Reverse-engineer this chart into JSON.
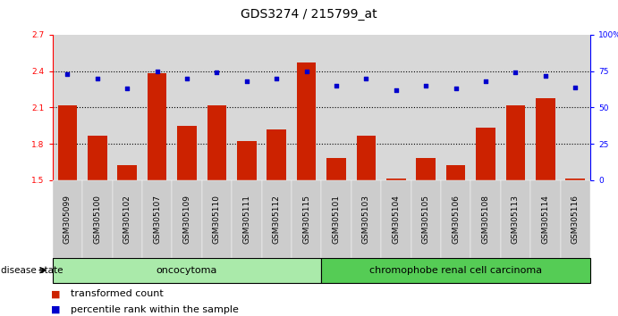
{
  "title": "GDS3274 / 215799_at",
  "samples": [
    "GSM305099",
    "GSM305100",
    "GSM305102",
    "GSM305107",
    "GSM305109",
    "GSM305110",
    "GSM305111",
    "GSM305112",
    "GSM305115",
    "GSM305101",
    "GSM305103",
    "GSM305104",
    "GSM305105",
    "GSM305106",
    "GSM305108",
    "GSM305113",
    "GSM305114",
    "GSM305116"
  ],
  "bar_values": [
    2.12,
    1.87,
    1.62,
    2.38,
    1.95,
    2.12,
    1.82,
    1.92,
    2.47,
    1.68,
    1.87,
    1.51,
    1.68,
    1.62,
    1.93,
    2.12,
    2.18,
    1.51
  ],
  "dot_values": [
    73,
    70,
    63,
    75,
    70,
    74,
    68,
    70,
    75,
    65,
    70,
    62,
    65,
    63,
    68,
    74,
    72,
    64
  ],
  "ylim_left": [
    1.5,
    2.7
  ],
  "ylim_right": [
    0,
    100
  ],
  "yticks_left": [
    1.5,
    1.8,
    2.1,
    2.4,
    2.7
  ],
  "yticks_right": [
    0,
    25,
    50,
    75,
    100
  ],
  "ytick_labels_right": [
    "0",
    "25",
    "50",
    "75",
    "100%"
  ],
  "bar_color": "#cc2200",
  "dot_color": "#0000cc",
  "group1_label": "oncocytoma",
  "group2_label": "chromophobe renal cell carcinoma",
  "group1_count": 9,
  "group2_count": 9,
  "group1_color": "#aaeaaa",
  "group2_color": "#55cc55",
  "disease_state_label": "disease state",
  "legend_bar_label": "transformed count",
  "legend_dot_label": "percentile rank within the sample",
  "background_color": "#ffffff",
  "plot_bg_color": "#d8d8d8",
  "title_fontsize": 10,
  "tick_fontsize": 6.5,
  "bar_width": 0.65
}
